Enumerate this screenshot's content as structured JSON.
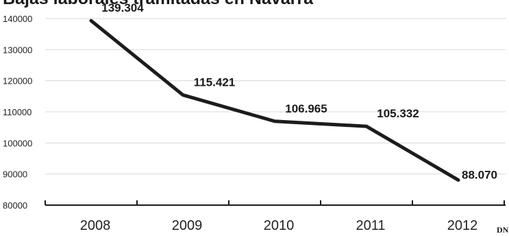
{
  "chart_data": {
    "type": "line",
    "title": "Bajas laborales tramitadas en Navarra",
    "categories": [
      "2008",
      "2009",
      "2010",
      "2011",
      "2012"
    ],
    "values": [
      139304,
      115421,
      106965,
      105332,
      88070
    ],
    "data_labels": [
      "139.304",
      "115.421",
      "106.965",
      "105.332",
      "88.070"
    ],
    "ylim": [
      80000,
      140000
    ],
    "yticks": [
      80000,
      90000,
      100000,
      110000,
      120000,
      130000,
      140000
    ],
    "ytick_labels": [
      "80000",
      "90000",
      "100000",
      "110000",
      "120000",
      "130000",
      "140000"
    ],
    "grid": true,
    "line_color": "#1c1c1c"
  },
  "credit": "DN"
}
